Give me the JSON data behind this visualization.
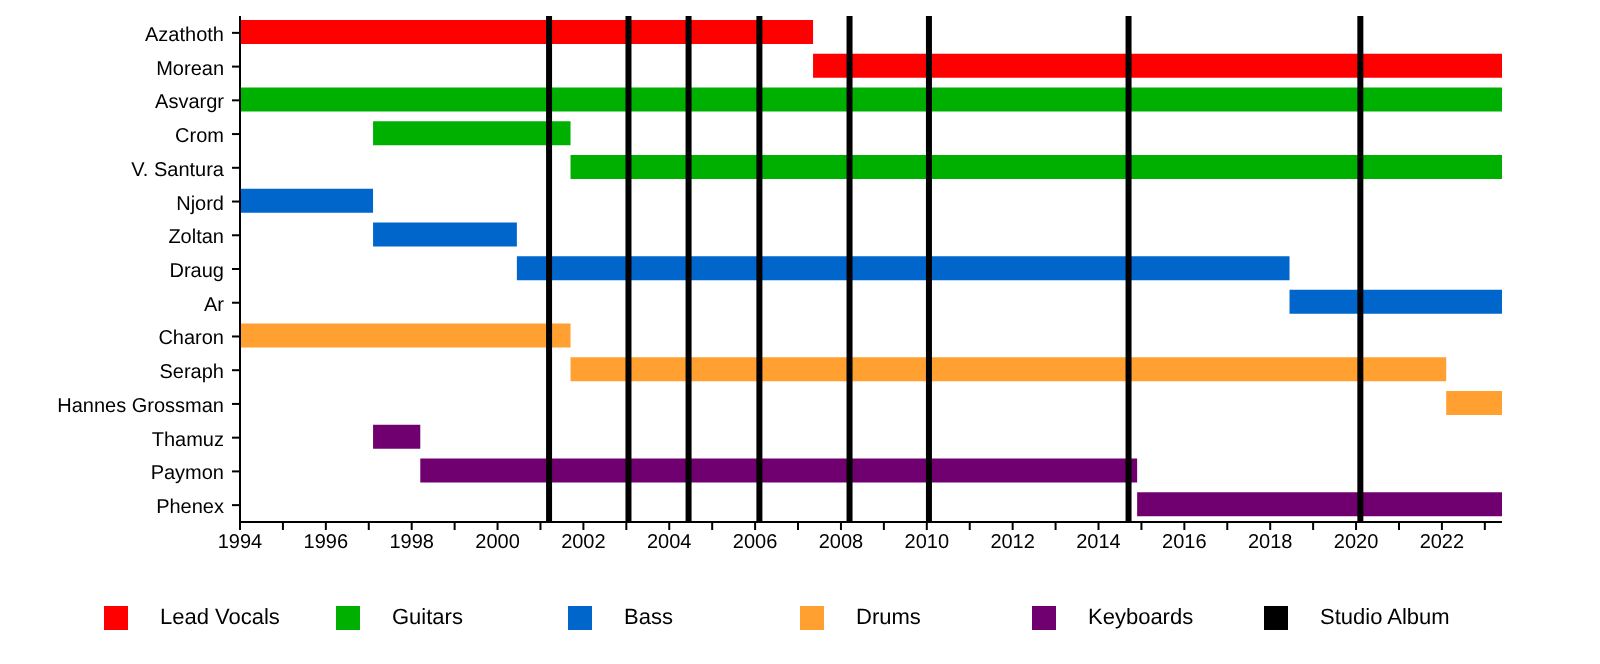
{
  "chart_data": {
    "type": "bar",
    "orientation": "horizontal",
    "categories": [
      "Azathoth",
      "Morean",
      "Asvargr",
      "Crom",
      "V. Santura",
      "Njord",
      "Zoltan",
      "Draug",
      "Ar",
      "Charon",
      "Seraph",
      "Hannes Grossman",
      "Thamuz",
      "Paymon",
      "Phenex"
    ],
    "series": [
      {
        "name": "Lead Vocals",
        "color": "#ff0000",
        "base": [
          1994,
          2007.35,
          null,
          null,
          null,
          null,
          null,
          null,
          null,
          null,
          null,
          null,
          null,
          null,
          null
        ],
        "values": [
          13.35,
          16.05,
          null,
          null,
          null,
          null,
          null,
          null,
          null,
          null,
          null,
          null,
          null,
          null,
          null
        ]
      },
      {
        "name": "Guitars",
        "color": "#00b000",
        "base": [
          null,
          null,
          1994,
          1997.1,
          2001.7,
          null,
          null,
          null,
          null,
          null,
          null,
          null,
          null,
          null,
          null
        ],
        "values": [
          null,
          null,
          29.4,
          4.6,
          21.7,
          null,
          null,
          null,
          null,
          null,
          null,
          null,
          null,
          null,
          null
        ]
      },
      {
        "name": "Bass",
        "color": "#0066cc",
        "base": [
          null,
          null,
          null,
          null,
          null,
          1994,
          1997.1,
          2000.45,
          2018.45,
          null,
          null,
          null,
          null,
          null,
          null
        ],
        "values": [
          null,
          null,
          null,
          null,
          null,
          3.1,
          3.35,
          18.0,
          4.95,
          null,
          null,
          null,
          null,
          null,
          null
        ]
      },
      {
        "name": "Drums",
        "color": "#ffa030",
        "base": [
          null,
          null,
          null,
          null,
          null,
          null,
          null,
          null,
          null,
          1994,
          2001.7,
          2022.1,
          null,
          null,
          null
        ],
        "values": [
          null,
          null,
          null,
          null,
          null,
          null,
          null,
          null,
          null,
          7.7,
          20.4,
          1.3,
          null,
          null,
          null
        ]
      },
      {
        "name": "Keyboards",
        "color": "#700070",
        "base": [
          null,
          null,
          null,
          null,
          null,
          null,
          null,
          null,
          null,
          null,
          null,
          null,
          1997.1,
          1998.2,
          2014.9
        ],
        "values": [
          null,
          null,
          null,
          null,
          null,
          null,
          null,
          null,
          null,
          null,
          null,
          null,
          1.1,
          16.7,
          8.5
        ]
      }
    ],
    "xlim": [
      1994,
      2023.4
    ],
    "xticks": [
      1994,
      {
        "value": 1995,
        "label": null
      },
      1996,
      {
        "value": 1997,
        "label": null
      },
      1998,
      {
        "value": 1999,
        "label": null
      },
      2000,
      {
        "value": 2001,
        "label": null
      },
      2002,
      {
        "value": 2003,
        "label": null
      },
      2004,
      {
        "value": 2005,
        "label": null
      },
      2006,
      {
        "value": 2007,
        "label": null
      },
      2008,
      {
        "value": 2009,
        "label": null
      },
      2010,
      {
        "value": 2011,
        "label": null
      },
      2012,
      {
        "value": 2013,
        "label": null
      },
      2014,
      {
        "value": 2015,
        "label": null
      },
      2016,
      {
        "value": 2017,
        "label": null
      },
      2018,
      {
        "value": 2019,
        "label": null
      },
      2020,
      {
        "value": 2021,
        "label": null
      },
      2022,
      {
        "value": 2023,
        "label": null
      }
    ],
    "ref_lines": [
      {
        "axis": "x",
        "value": 2001.2,
        "label": "Studio Album",
        "color": "#000000"
      },
      {
        "axis": "x",
        "value": 2003.05,
        "color": "#000000"
      },
      {
        "axis": "x",
        "value": 2004.45,
        "color": "#000000"
      },
      {
        "axis": "x",
        "value": 2006.1,
        "color": "#000000"
      },
      {
        "axis": "x",
        "value": 2008.2,
        "color": "#000000"
      },
      {
        "axis": "x",
        "value": 2010.05,
        "color": "#000000"
      },
      {
        "axis": "x",
        "value": 2014.7,
        "color": "#000000"
      },
      {
        "axis": "x",
        "value": 2020.1,
        "color": "#000000"
      }
    ],
    "grid": false,
    "legend": "bottom"
  }
}
